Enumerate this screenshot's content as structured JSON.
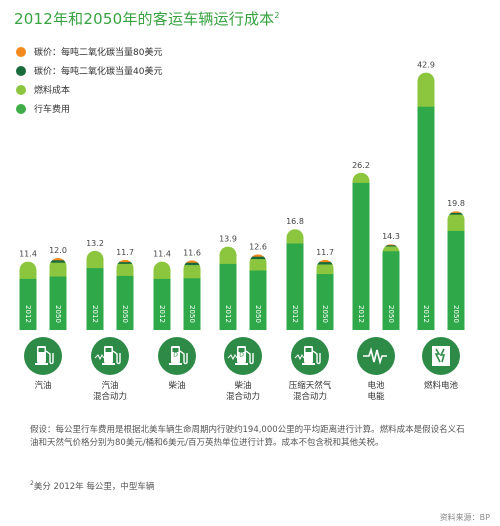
{
  "title": "2012年和2050年的客运车辆运行成本",
  "title_sup": "2",
  "legend": [
    {
      "label": "碳价：每吨二氧化碳当量80美元",
      "color": "#f28a1d"
    },
    {
      "label": "碳价：每吨二氧化碳当量40美元",
      "color": "#1a6b3c"
    },
    {
      "label": "燃料成本",
      "color": "#8cc63f"
    },
    {
      "label": "行车费用",
      "color": "#3fae49"
    }
  ],
  "colors": {
    "fuel": "#8cc63f",
    "driving": "#2fa84a",
    "carbon40": "#1a6b3c",
    "carbon80": "#f28a1d",
    "icon_bg": "#2e8b47",
    "title": "#37a23f"
  },
  "chart_data": {
    "type": "bar",
    "stacked": true,
    "categories": [
      "汽油",
      "汽油\n混合动力",
      "柴油",
      "柴油\n混合动力",
      "压缩天然气\n混合动力",
      "电池\n电能",
      "燃料电池"
    ],
    "category_icons": [
      "fuel-pump-icon",
      "hybrid-pump-icon",
      "diesel-pump-icon",
      "hybrid-pump-icon",
      "cng-pump-icon",
      "electricity-icon",
      "fuel-cell-icon"
    ],
    "year_labels": [
      "2012",
      "2050"
    ],
    "totals_2012": [
      11.4,
      13.2,
      11.4,
      13.9,
      16.8,
      26.2,
      42.9
    ],
    "totals_2050": [
      12.0,
      11.7,
      11.6,
      12.6,
      11.7,
      14.3,
      19.8
    ],
    "total_labels_2012": [
      "11.4",
      "13.2",
      "11.4",
      "13.9",
      "16.8",
      "26.2",
      "42.9"
    ],
    "total_labels_2050": [
      "12.0",
      "11.7",
      "11.6",
      "12.6",
      "11.7",
      "14.3",
      "19.8"
    ],
    "series_2012": [
      {
        "name": "行车费用",
        "values": [
          8.6,
          10.4,
          8.6,
          11.1,
          14.5,
          24.6,
          37.3
        ]
      },
      {
        "name": "燃料成本",
        "values": [
          2.8,
          2.8,
          2.8,
          2.8,
          2.3,
          1.6,
          5.6
        ]
      }
    ],
    "series_2050": [
      {
        "name": "行车费用",
        "values": [
          9.0,
          9.1,
          8.7,
          10.0,
          9.4,
          13.2,
          16.6
        ]
      },
      {
        "name": "燃料成本",
        "values": [
          2.3,
          2.0,
          2.2,
          1.9,
          1.6,
          0.8,
          2.7
        ]
      },
      {
        "name": "碳价：每吨二氧化碳当量40美元",
        "values": [
          0.4,
          0.3,
          0.4,
          0.4,
          0.4,
          0.2,
          0.3
        ]
      },
      {
        "name": "碳价：每吨二氧化碳当量80美元",
        "values": [
          0.3,
          0.3,
          0.3,
          0.3,
          0.3,
          0.1,
          0.2
        ]
      }
    ],
    "ylim": [
      0,
      45
    ]
  },
  "note": "假设：每公里行车费用是根据北美车辆生命周期内行驶约194,000公里的平均距离进行计算。燃料成本是假设名义石油和天然气价格分别为80美元/桶和6美元/百万英热单位进行计算。成本不包含税和其他关税。",
  "footnote_sup": "2",
  "footnote": "美分 2012年 每公里，中型车辆",
  "source": "资料来源：BP"
}
